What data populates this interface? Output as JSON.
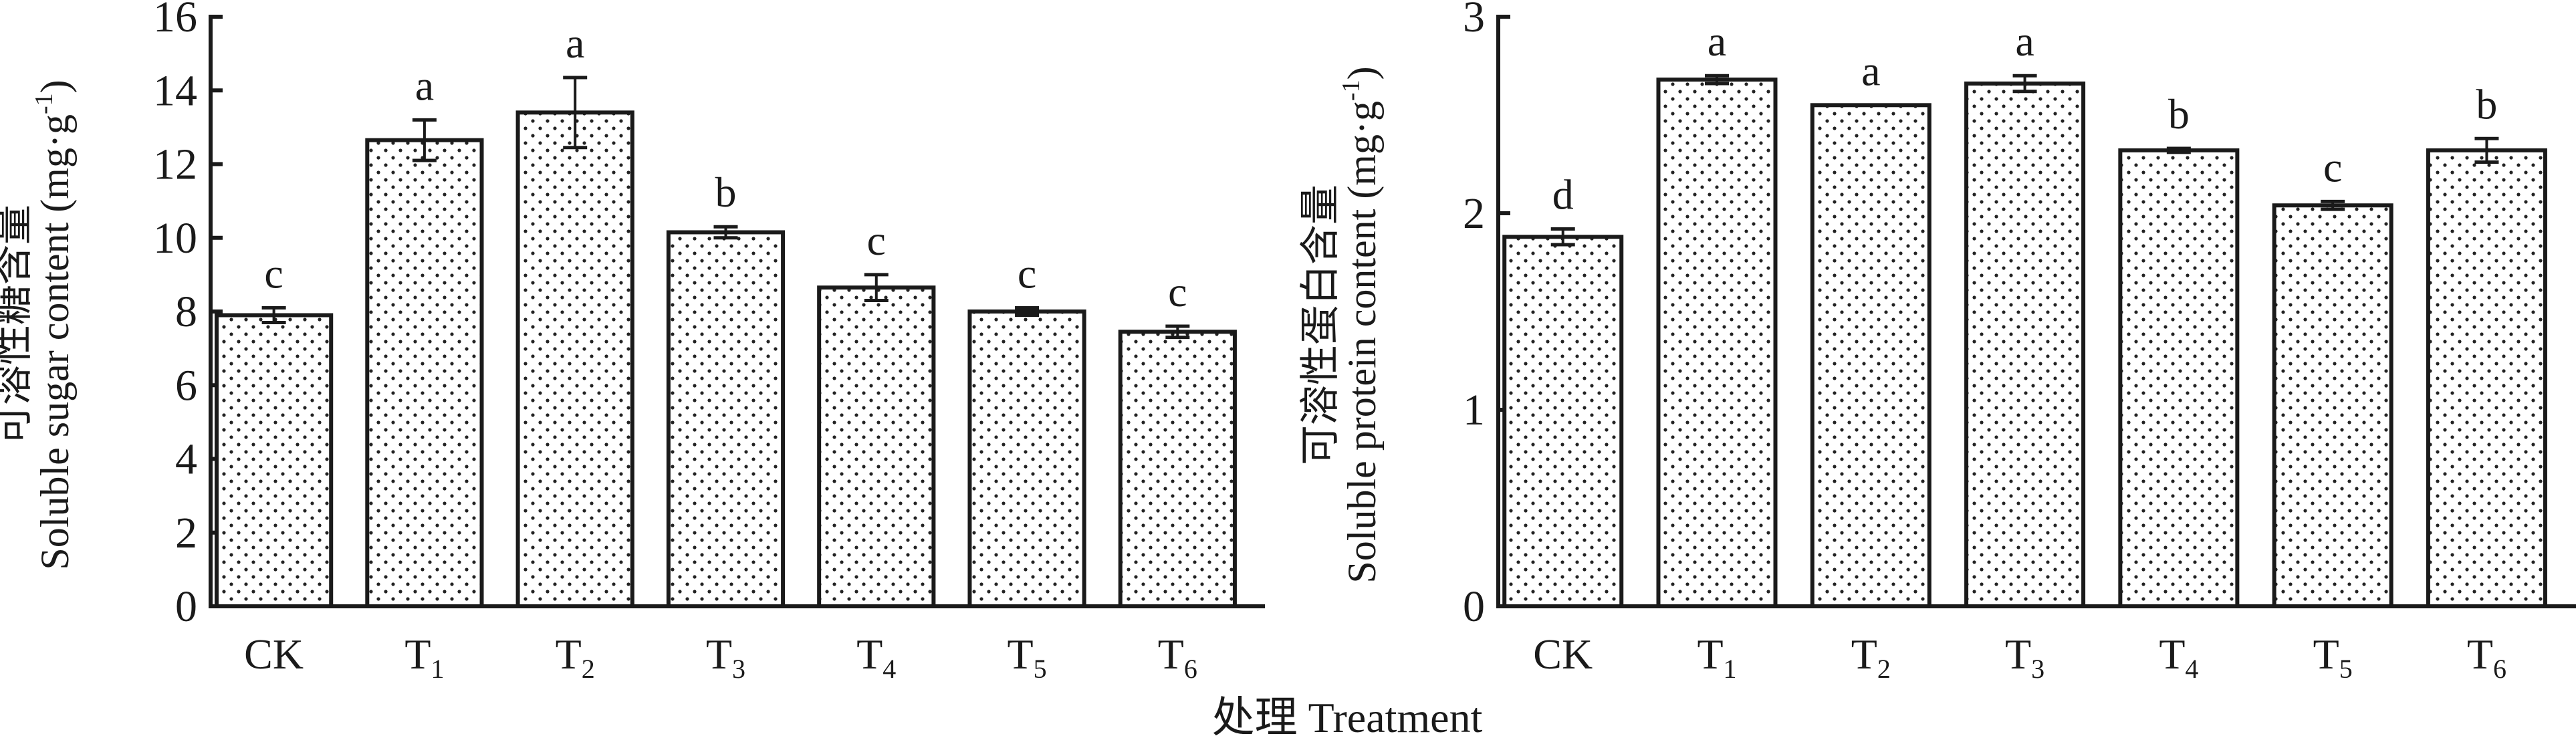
{
  "chart_data": [
    {
      "type": "bar",
      "title": "",
      "categories": [
        {
          "base": "CK",
          "sub": ""
        },
        {
          "base": "T",
          "sub": "1"
        },
        {
          "base": "T",
          "sub": "2"
        },
        {
          "base": "T",
          "sub": "3"
        },
        {
          "base": "T",
          "sub": "4"
        },
        {
          "base": "T",
          "sub": "5"
        },
        {
          "base": "T",
          "sub": "6"
        }
      ],
      "values": [
        7.9,
        12.65,
        13.4,
        10.15,
        8.65,
        8.0,
        7.45
      ],
      "errors": [
        0.2,
        0.55,
        0.95,
        0.15,
        0.35,
        0.1,
        0.15
      ],
      "significance": [
        "c",
        "a",
        "a",
        "b",
        "c",
        "c",
        "c"
      ],
      "ylabel_cn": "可溶性糖含量",
      "ylabel_en": "Soluble sugar content (mg·g",
      "ylabel_sup": "-1",
      "ylabel_close": ")",
      "ylim": [
        0,
        16
      ],
      "yticks": [
        0,
        2,
        4,
        6,
        8,
        10,
        12,
        14,
        16
      ],
      "grid": false
    },
    {
      "type": "bar",
      "title": "",
      "categories": [
        {
          "base": "CK",
          "sub": ""
        },
        {
          "base": "T",
          "sub": "1"
        },
        {
          "base": "T",
          "sub": "2"
        },
        {
          "base": "T",
          "sub": "3"
        },
        {
          "base": "T",
          "sub": "4"
        },
        {
          "base": "T",
          "sub": "5"
        },
        {
          "base": "T",
          "sub": "6"
        }
      ],
      "values": [
        1.88,
        2.68,
        2.55,
        2.66,
        2.32,
        2.04,
        2.32
      ],
      "errors": [
        0.04,
        0.02,
        0.0,
        0.04,
        0.01,
        0.02,
        0.06
      ],
      "significance": [
        "d",
        "a",
        "a",
        "a",
        "b",
        "c",
        "b"
      ],
      "ylabel_cn": "可溶性蛋白含量",
      "ylabel_en": "Soluble protein content (mg·g",
      "ylabel_sup": "-1",
      "ylabel_close": ")",
      "ylim": [
        0,
        3
      ],
      "yticks": [
        0,
        1,
        2,
        3
      ],
      "grid": false
    }
  ],
  "xlabel": "处理 Treatment",
  "colors": {
    "bar_fill": "#ffffff",
    "bar_dots": "#222222",
    "stroke": "#1a1a1a"
  }
}
